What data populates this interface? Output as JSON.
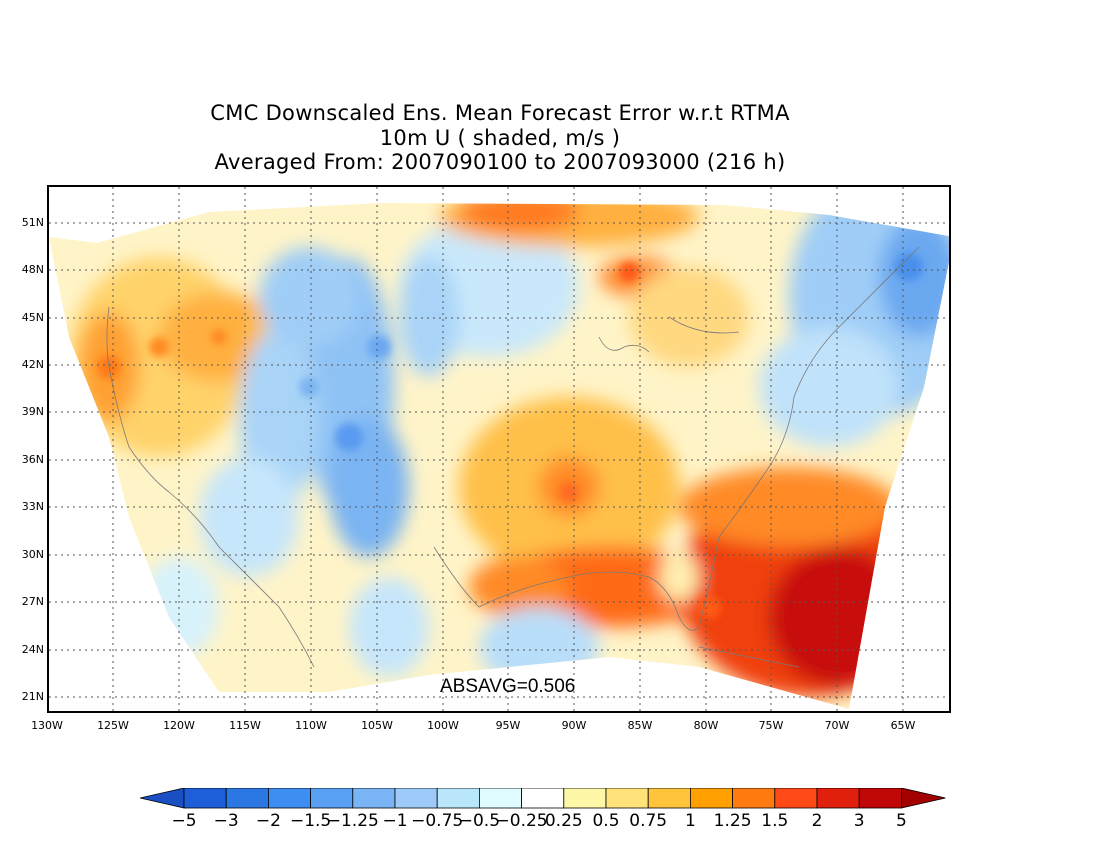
{
  "title": {
    "line1": "CMC Downscaled Ens. Mean Forecast Error w.r.t RTMA",
    "line2": "10m U ( shaded, m/s )",
    "line3": "Averaged From: 2007090100 to 2007093000 (216 h)"
  },
  "map": {
    "lat_labels": [
      "51N",
      "48N",
      "45N",
      "42N",
      "39N",
      "36N",
      "33N",
      "30N",
      "27N",
      "24N",
      "21N"
    ],
    "lon_labels": [
      "130W",
      "125W",
      "120W",
      "115W",
      "110W",
      "105W",
      "100W",
      "95W",
      "90W",
      "85W",
      "80W",
      "75W",
      "70W",
      "65W"
    ],
    "annotation": "ABSAVG=0.506",
    "gridlines": "dotted",
    "colors": {
      "frame": "#000000",
      "coast": "#7a7a7a"
    }
  },
  "colorbar": {
    "labels": [
      "−5",
      "−3",
      "−2",
      "−1.5",
      "−1.25",
      "−1",
      "−0.75",
      "−0.5",
      "−0.25",
      "0.25",
      "0.5",
      "0.75",
      "1",
      "1.25",
      "1.5",
      "2",
      "3",
      "5"
    ],
    "colors": [
      "#1e5fd9",
      "#2b78e4",
      "#3d8ef0",
      "#5aa0f2",
      "#79b4f5",
      "#9dcaf8",
      "#b9e6fb",
      "#e0fbfd",
      "#ffffff",
      "#fff7a8",
      "#ffe37a",
      "#ffc43c",
      "#ffa000",
      "#ff7a10",
      "#ff4a18",
      "#e0200c",
      "#c00808"
    ],
    "under_color": "#1a4fc4",
    "over_color": "#a30000"
  }
}
